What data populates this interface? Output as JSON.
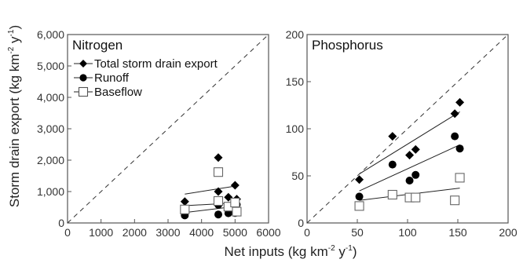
{
  "figure": {
    "ylabel": {
      "main": "Storm drain export (kg km",
      "sup1": "-2",
      "mid": " y",
      "sup2": "-1",
      "end": ")"
    },
    "xlabel": {
      "main": "Net inputs (kg km",
      "sup1": "-2",
      "mid": " y",
      "sup2": "-1",
      "end": ")"
    }
  },
  "legend": {
    "entries": [
      {
        "name": "Total storm drain export",
        "marker": "diamond"
      },
      {
        "name": "Runoff",
        "marker": "circle"
      },
      {
        "name": "Baseflow",
        "marker": "square-open"
      }
    ]
  },
  "chart_data": [
    {
      "type": "scatter",
      "title": "Nitrogen",
      "xlim": [
        0,
        6000
      ],
      "ylim": [
        0,
        6000
      ],
      "xticks": [
        "0",
        "1000",
        "2000",
        "3000",
        "4000",
        "5000",
        "6000"
      ],
      "xtick_values": [
        0,
        1000,
        2000,
        3000,
        4000,
        5000,
        6000
      ],
      "yticks": [
        "0",
        "1,000",
        "2,000",
        "3,000",
        "4,000",
        "5,000",
        "6,000"
      ],
      "ytick_values": [
        0,
        1000,
        2000,
        3000,
        4000,
        5000,
        6000
      ],
      "one_to_one_line": true,
      "series": [
        {
          "name": "Total storm drain export",
          "marker": "diamond",
          "points": [
            [
              3500,
              680
            ],
            [
              4500,
              2080
            ],
            [
              4500,
              1000
            ],
            [
              4800,
              820
            ],
            [
              5000,
              1200
            ],
            [
              5050,
              760
            ]
          ],
          "fit": [
            [
              3500,
              920
            ],
            [
              5050,
              1180
            ]
          ]
        },
        {
          "name": "Runoff",
          "marker": "circle",
          "points": [
            [
              3500,
              240
            ],
            [
              4500,
              580
            ],
            [
              4500,
              270
            ],
            [
              4800,
              310
            ],
            [
              5000,
              320
            ],
            [
              5050,
              580
            ]
          ],
          "fit": [
            [
              3500,
              330
            ],
            [
              5050,
              530
            ]
          ]
        },
        {
          "name": "Baseflow",
          "marker": "square-open",
          "points": [
            [
              3500,
              430
            ],
            [
              4500,
              1620
            ],
            [
              4500,
              700
            ],
            [
              4800,
              520
            ],
            [
              5000,
              650
            ],
            [
              5050,
              360
            ]
          ],
          "fit": [
            [
              3500,
              550
            ],
            [
              5050,
              640
            ]
          ]
        }
      ]
    },
    {
      "type": "scatter",
      "title": "Phosphorus",
      "xlim": [
        0,
        200
      ],
      "ylim": [
        0,
        200
      ],
      "xticks": [
        "0",
        "50",
        "100",
        "150",
        "200"
      ],
      "xtick_values": [
        0,
        50,
        100,
        150,
        200
      ],
      "yticks": [
        "0",
        "50",
        "100",
        "150",
        "200"
      ],
      "ytick_values": [
        0,
        50,
        100,
        150,
        200
      ],
      "one_to_one_line": true,
      "series": [
        {
          "name": "Total storm drain export",
          "marker": "diamond",
          "points": [
            [
              52,
              46
            ],
            [
              85,
              92
            ],
            [
              102,
              72
            ],
            [
              108,
              78
            ],
            [
              147,
              116
            ],
            [
              152,
              128
            ]
          ],
          "fit": [
            [
              52,
              52
            ],
            [
              152,
              118
            ]
          ]
        },
        {
          "name": "Runoff",
          "marker": "circle",
          "points": [
            [
              52,
              28
            ],
            [
              85,
              62
            ],
            [
              102,
              45
            ],
            [
              108,
              51
            ],
            [
              147,
              92
            ],
            [
              152,
              79
            ]
          ],
          "fit": [
            [
              52,
              34
            ],
            [
              152,
              83
            ]
          ]
        },
        {
          "name": "Baseflow",
          "marker": "square-open",
          "points": [
            [
              52,
              18
            ],
            [
              85,
              30
            ],
            [
              102,
              27
            ],
            [
              108,
              27
            ],
            [
              147,
              24
            ],
            [
              152,
              48
            ]
          ],
          "fit": [
            [
              52,
              24
            ],
            [
              152,
              37
            ]
          ]
        }
      ]
    }
  ]
}
